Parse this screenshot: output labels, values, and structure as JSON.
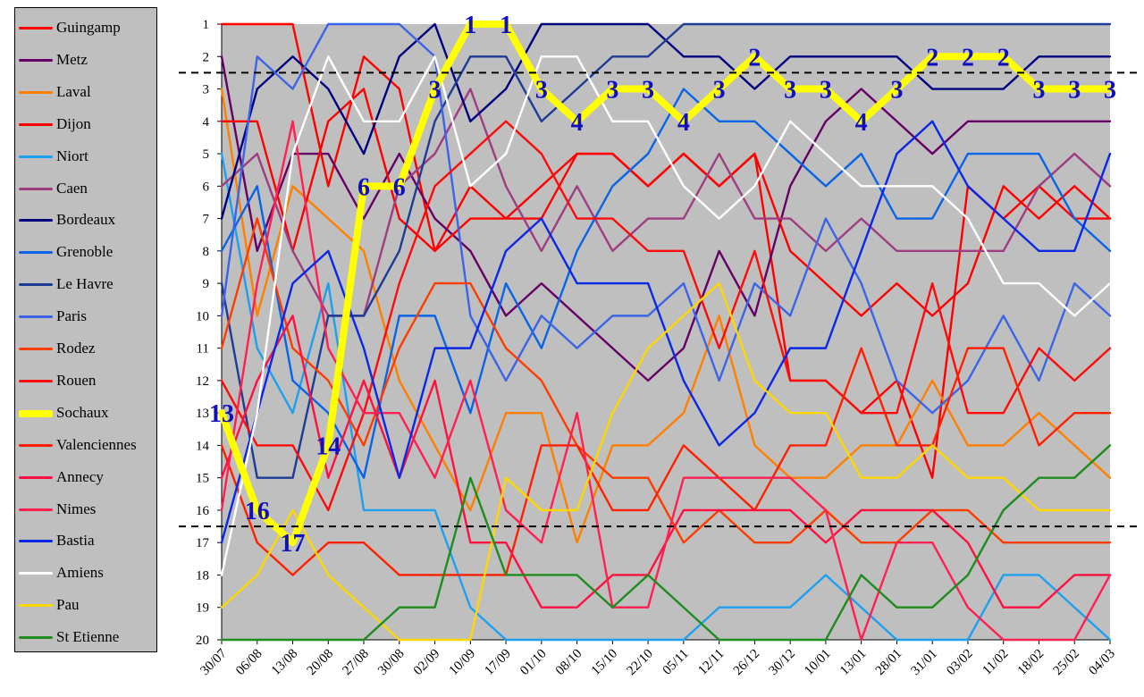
{
  "chart_data": {
    "type": "line",
    "ylim": [
      1,
      20
    ],
    "y_inverted": true,
    "grid": false,
    "legend": "left",
    "x": [
      "30/07",
      "06/08",
      "13/08",
      "20/08",
      "27/08",
      "30/08",
      "02/09",
      "10/09",
      "17/09",
      "01/10",
      "08/10",
      "15/10",
      "22/10",
      "05/11",
      "12/11",
      "26/12",
      "30/12",
      "10/01",
      "13/01",
      "28/01",
      "31/01",
      "03/02",
      "11/02",
      "18/02",
      "25/02",
      "04/03"
    ],
    "yticks": [
      1,
      2,
      3,
      4,
      5,
      6,
      7,
      8,
      9,
      10,
      11,
      12,
      13,
      14,
      15,
      16,
      17,
      18,
      19,
      20
    ],
    "reference_lines": [
      2.5,
      16.5
    ],
    "series": [
      {
        "name": "Guingamp",
        "color": "#ff0000",
        "values": [
          1,
          1,
          1,
          6,
          2,
          3,
          8,
          6,
          7,
          7,
          5,
          5,
          6,
          5,
          6,
          5,
          12,
          12,
          13,
          12,
          15,
          6,
          7,
          6,
          7,
          7
        ]
      },
      {
        "name": "Metz",
        "color": "#660066",
        "values": [
          2,
          8,
          5,
          5,
          7,
          5,
          7,
          8,
          10,
          9,
          10,
          11,
          12,
          11,
          8,
          10,
          6,
          4,
          3,
          4,
          5,
          4,
          4,
          4,
          4,
          4
        ]
      },
      {
        "name": "Laval",
        "color": "#ff7f00",
        "values": [
          3,
          10,
          6,
          7,
          8,
          12,
          14,
          16,
          13,
          13,
          17,
          14,
          14,
          13,
          10,
          14,
          15,
          15,
          14,
          14,
          12,
          14,
          14,
          13,
          14,
          15
        ]
      },
      {
        "name": "Dijon",
        "color": "#ff0000",
        "values": [
          4,
          4,
          8,
          4,
          3,
          7,
          8,
          7,
          7,
          6,
          5,
          5,
          6,
          5,
          6,
          5,
          8,
          9,
          10,
          9,
          10,
          9,
          6,
          7,
          6,
          7
        ]
      },
      {
        "name": "Niort",
        "color": "#1ea0f0",
        "values": [
          5,
          11,
          13,
          9,
          16,
          16,
          16,
          19,
          20,
          20,
          20,
          20,
          20,
          20,
          19,
          19,
          19,
          18,
          19,
          20,
          20,
          20,
          18,
          18,
          19,
          20
        ]
      },
      {
        "name": "Caen",
        "color": "#a03c80",
        "values": [
          6,
          5,
          8,
          10,
          10,
          6,
          5,
          3,
          6,
          8,
          6,
          8,
          7,
          7,
          5,
          7,
          7,
          8,
          7,
          8,
          8,
          8,
          8,
          6,
          5,
          6
        ]
      },
      {
        "name": "Bordeaux",
        "color": "#00007f",
        "values": [
          7,
          3,
          2,
          3,
          5,
          2,
          1,
          4,
          3,
          1,
          1,
          1,
          1,
          2,
          2,
          3,
          2,
          2,
          2,
          2,
          3,
          3,
          3,
          2,
          2,
          2
        ]
      },
      {
        "name": "Grenoble",
        "color": "#0a64e6",
        "values": [
          8,
          6,
          12,
          13,
          15,
          10,
          10,
          13,
          9,
          11,
          8,
          6,
          5,
          3,
          4,
          4,
          5,
          6,
          5,
          7,
          7,
          5,
          5,
          5,
          7,
          8
        ]
      },
      {
        "name": "Le Havre",
        "color": "#1e3c96",
        "values": [
          9,
          15,
          15,
          10,
          10,
          8,
          4,
          2,
          2,
          4,
          3,
          2,
          2,
          1,
          1,
          1,
          1,
          1,
          1,
          1,
          1,
          1,
          1,
          1,
          1,
          1
        ]
      },
      {
        "name": "Paris",
        "color": "#3c64e6",
        "values": [
          10,
          2,
          3,
          1,
          1,
          1,
          2,
          10,
          12,
          10,
          11,
          10,
          10,
          9,
          12,
          9,
          10,
          7,
          9,
          12,
          13,
          12,
          10,
          12,
          9,
          10
        ]
      },
      {
        "name": "Rodez",
        "color": "#ff3c00",
        "values": [
          11,
          7,
          11,
          12,
          14,
          11,
          9,
          9,
          11,
          12,
          14,
          15,
          15,
          17,
          16,
          17,
          17,
          16,
          17,
          17,
          16,
          16,
          17,
          17,
          17,
          17
        ]
      },
      {
        "name": "Rouen",
        "color": "#ff0a0a",
        "values": [
          12,
          14,
          14,
          16,
          13,
          9,
          6,
          5,
          4,
          5,
          7,
          7,
          8,
          8,
          11,
          8,
          12,
          12,
          13,
          13,
          9,
          13,
          13,
          11,
          12,
          11
        ]
      },
      {
        "name": "Sochaux",
        "color": "#ffff00",
        "values": [
          13,
          16,
          17,
          14,
          6,
          6,
          3,
          1,
          1,
          3,
          4,
          3,
          3,
          4,
          3,
          2,
          3,
          3,
          4,
          3,
          2,
          2,
          2,
          3,
          3,
          3
        ]
      },
      {
        "name": "Valenciennes",
        "color": "#ff2000",
        "values": [
          14,
          17,
          18,
          17,
          17,
          18,
          18,
          18,
          18,
          14,
          14,
          16,
          16,
          14,
          15,
          16,
          14,
          14,
          11,
          14,
          14,
          11,
          11,
          14,
          13,
          13
        ]
      },
      {
        "name": "Annecy",
        "color": "#ff1040",
        "values": [
          15,
          12,
          10,
          15,
          12,
          15,
          12,
          17,
          17,
          19,
          19,
          18,
          18,
          16,
          16,
          16,
          16,
          17,
          16,
          16,
          16,
          17,
          19,
          19,
          18,
          18
        ]
      },
      {
        "name": "Nimes",
        "color": "#ff2050",
        "values": [
          16,
          9,
          4,
          11,
          13,
          13,
          15,
          12,
          16,
          17,
          13,
          19,
          19,
          15,
          15,
          15,
          15,
          16,
          20,
          17,
          17,
          19,
          20,
          20,
          20,
          18
        ]
      },
      {
        "name": "Bastia",
        "color": "#0a28e6",
        "values": [
          17,
          13,
          9,
          8,
          11,
          15,
          11,
          11,
          8,
          7,
          9,
          9,
          9,
          12,
          14,
          13,
          11,
          11,
          8,
          5,
          4,
          6,
          7,
          8,
          8,
          5
        ]
      },
      {
        "name": "Amiens",
        "color": "#ffffff",
        "values": [
          18,
          13,
          5,
          2,
          4,
          4,
          2,
          6,
          5,
          2,
          2,
          4,
          4,
          6,
          7,
          6,
          4,
          5,
          6,
          6,
          6,
          7,
          9,
          9,
          10,
          9
        ]
      },
      {
        "name": "Pau",
        "color": "#ffd700",
        "values": [
          19,
          18,
          16,
          18,
          19,
          20,
          20,
          20,
          15,
          16,
          16,
          13,
          11,
          10,
          9,
          12,
          13,
          13,
          15,
          15,
          14,
          15,
          15,
          16,
          16,
          16
        ]
      },
      {
        "name": "St Etienne",
        "color": "#1e8c1e",
        "values": [
          20,
          20,
          20,
          20,
          20,
          19,
          19,
          15,
          18,
          18,
          18,
          19,
          18,
          19,
          20,
          20,
          20,
          20,
          18,
          19,
          19,
          18,
          16,
          15,
          15,
          14
        ]
      }
    ],
    "highlighted_series": "Sochaux",
    "point_labels": [
      {
        "x": "30/07",
        "y": 13,
        "text": "13"
      },
      {
        "x": "06/08",
        "y": 16,
        "text": "16"
      },
      {
        "x": "13/08",
        "y": 17,
        "text": "17"
      },
      {
        "x": "20/08",
        "y": 14,
        "text": "14"
      },
      {
        "x": "27/08",
        "y": 6,
        "text": "6"
      },
      {
        "x": "30/08",
        "y": 6,
        "text": "6"
      },
      {
        "x": "02/09",
        "y": 3,
        "text": "3"
      },
      {
        "x": "10/09",
        "y": 1,
        "text": "1"
      },
      {
        "x": "17/09",
        "y": 1,
        "text": "1"
      },
      {
        "x": "01/10",
        "y": 3,
        "text": "3"
      },
      {
        "x": "08/10",
        "y": 4,
        "text": "4"
      },
      {
        "x": "15/10",
        "y": 3,
        "text": "3"
      },
      {
        "x": "22/10",
        "y": 3,
        "text": "3"
      },
      {
        "x": "05/11",
        "y": 4,
        "text": "4"
      },
      {
        "x": "12/11",
        "y": 3,
        "text": "3"
      },
      {
        "x": "26/12",
        "y": 2,
        "text": "2"
      },
      {
        "x": "30/12",
        "y": 3,
        "text": "3"
      },
      {
        "x": "10/01",
        "y": 3,
        "text": "3"
      },
      {
        "x": "13/01",
        "y": 4,
        "text": "4"
      },
      {
        "x": "28/01",
        "y": 3,
        "text": "3"
      },
      {
        "x": "31/01",
        "y": 2,
        "text": "2"
      },
      {
        "x": "03/02",
        "y": 2,
        "text": "2"
      },
      {
        "x": "11/02",
        "y": 2,
        "text": "2"
      },
      {
        "x": "18/02",
        "y": 3,
        "text": "3"
      },
      {
        "x": "25/02",
        "y": 3,
        "text": "3"
      },
      {
        "x": "04/03",
        "y": 3,
        "text": "3"
      }
    ]
  }
}
